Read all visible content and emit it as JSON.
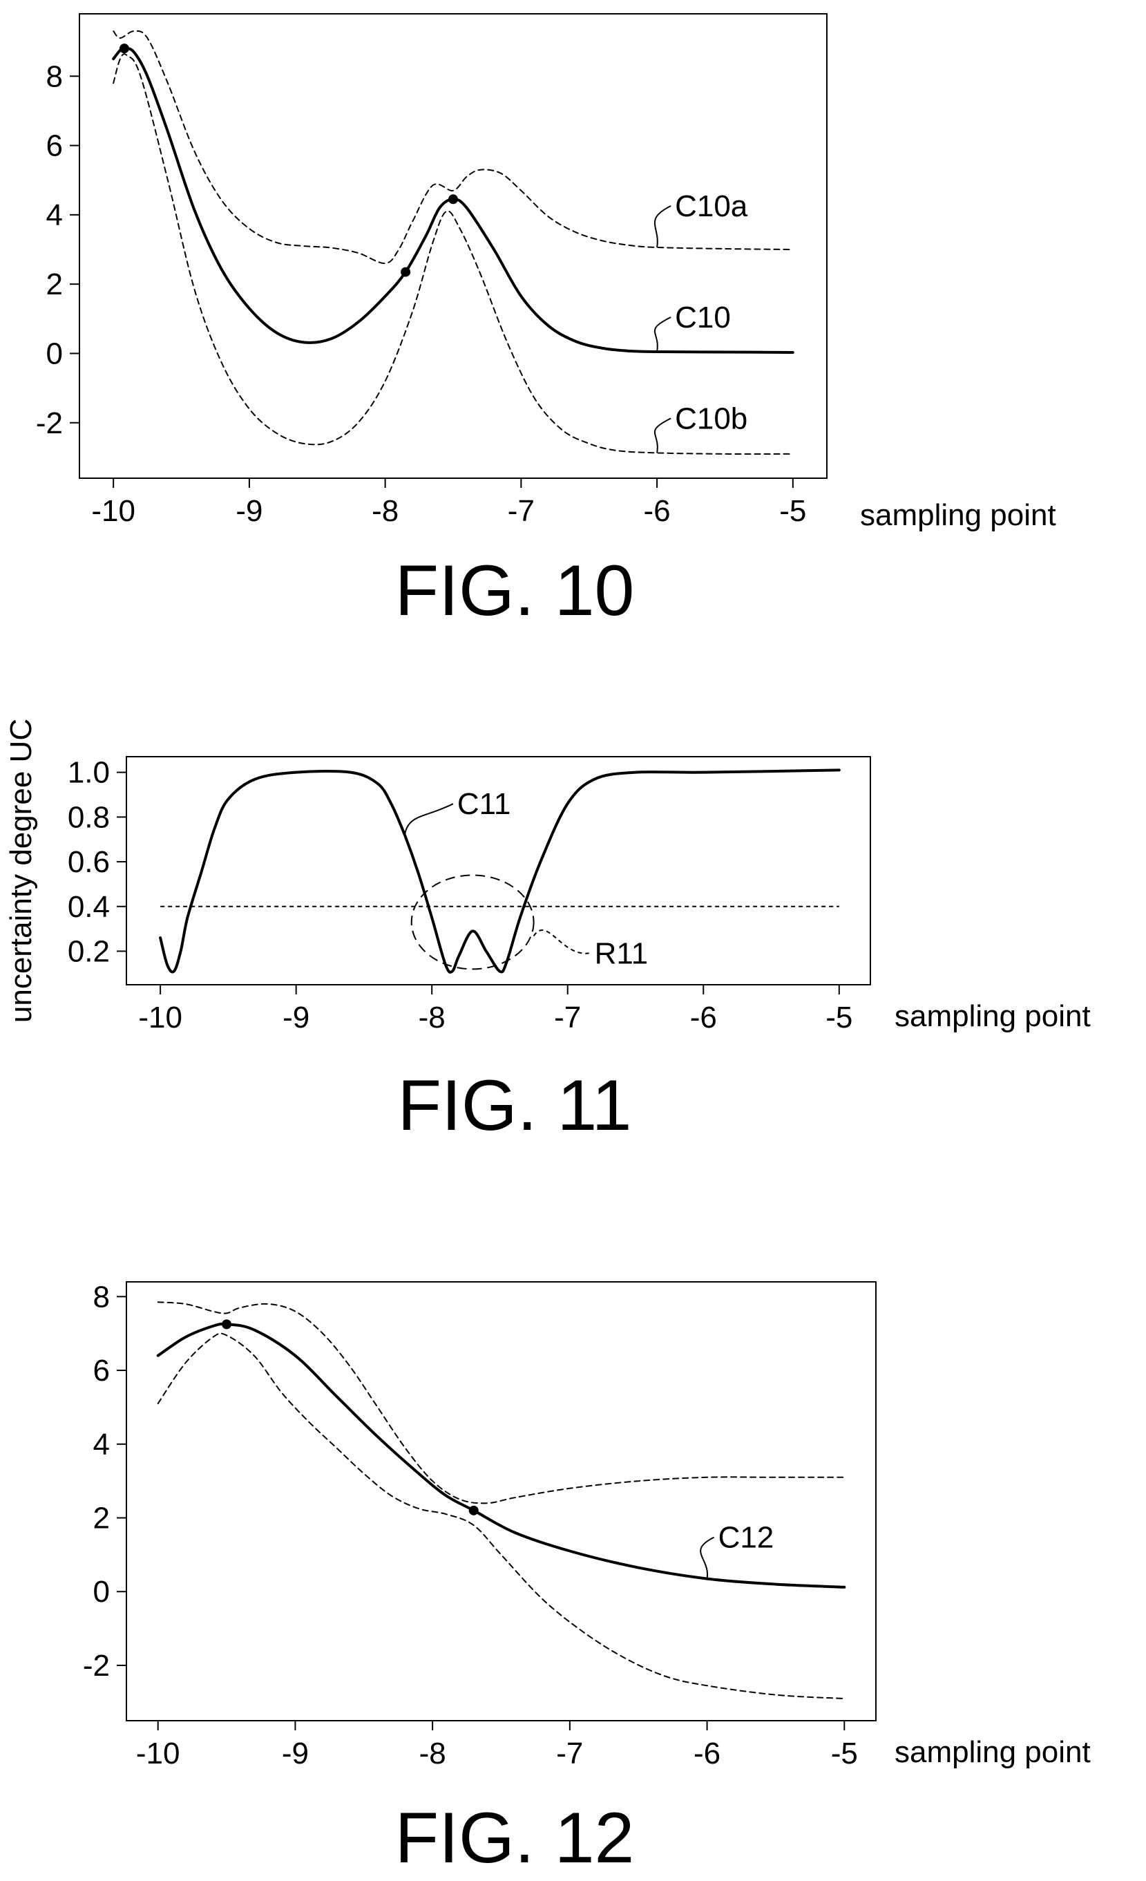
{
  "chart_data": [
    {
      "type": "line",
      "caption": "FIG. 10",
      "xlabel": "sampling point",
      "ylabel": "",
      "xlim": [
        -10.25,
        -4.75
      ],
      "ylim": [
        -3.6,
        9.8
      ],
      "grid": false,
      "legend": "none",
      "x_ticks": [
        -10,
        -9,
        -8,
        -7,
        -6,
        -5
      ],
      "y_ticks": [
        -2,
        0,
        2,
        4,
        6,
        8
      ],
      "series": [
        {
          "name": "C10a",
          "style": "dashed",
          "points": [
            [
              -10,
              9.3
            ],
            [
              -9.95,
              9.1
            ],
            [
              -9.85,
              9.3
            ],
            [
              -9.75,
              9.1
            ],
            [
              -9.6,
              7.8
            ],
            [
              -9.4,
              5.8
            ],
            [
              -9.2,
              4.4
            ],
            [
              -9.0,
              3.6
            ],
            [
              -8.8,
              3.2
            ],
            [
              -8.6,
              3.1
            ],
            [
              -8.4,
              3.05
            ],
            [
              -8.2,
              2.9
            ],
            [
              -8.0,
              2.6
            ],
            [
              -7.9,
              3.0
            ],
            [
              -7.8,
              3.8
            ],
            [
              -7.65,
              4.85
            ],
            [
              -7.5,
              4.7
            ],
            [
              -7.4,
              5.1
            ],
            [
              -7.3,
              5.3
            ],
            [
              -7.15,
              5.2
            ],
            [
              -7.0,
              4.7
            ],
            [
              -6.8,
              3.95
            ],
            [
              -6.6,
              3.5
            ],
            [
              -6.4,
              3.25
            ],
            [
              -6.2,
              3.12
            ],
            [
              -6.0,
              3.06
            ],
            [
              -5.5,
              3.02
            ],
            [
              -5.0,
              3.0
            ]
          ],
          "label_at": -6.0
        },
        {
          "name": "C10",
          "style": "solid",
          "points": [
            [
              -10,
              8.5
            ],
            [
              -9.95,
              8.75
            ],
            [
              -9.92,
              8.8
            ],
            [
              -9.85,
              8.7
            ],
            [
              -9.75,
              8.0
            ],
            [
              -9.6,
              6.4
            ],
            [
              -9.4,
              4.1
            ],
            [
              -9.2,
              2.4
            ],
            [
              -9.0,
              1.3
            ],
            [
              -8.8,
              0.6
            ],
            [
              -8.6,
              0.32
            ],
            [
              -8.4,
              0.42
            ],
            [
              -8.2,
              0.9
            ],
            [
              -8.0,
              1.65
            ],
            [
              -7.85,
              2.35
            ],
            [
              -7.7,
              3.4
            ],
            [
              -7.6,
              4.2
            ],
            [
              -7.5,
              4.45
            ],
            [
              -7.4,
              4.2
            ],
            [
              -7.2,
              3.0
            ],
            [
              -7.0,
              1.65
            ],
            [
              -6.8,
              0.8
            ],
            [
              -6.6,
              0.35
            ],
            [
              -6.4,
              0.15
            ],
            [
              -6.2,
              0.07
            ],
            [
              -6.0,
              0.05
            ],
            [
              -5.5,
              0.04
            ],
            [
              -5.0,
              0.03
            ]
          ],
          "markers": [
            [
              -9.92,
              8.8
            ],
            [
              -7.85,
              2.35
            ],
            [
              -7.5,
              4.45
            ]
          ],
          "label_at": -6.0
        },
        {
          "name": "C10b",
          "style": "dashed",
          "points": [
            [
              -10,
              7.8
            ],
            [
              -9.95,
              8.5
            ],
            [
              -9.9,
              8.6
            ],
            [
              -9.8,
              8.0
            ],
            [
              -9.6,
              5.0
            ],
            [
              -9.4,
              1.8
            ],
            [
              -9.2,
              -0.3
            ],
            [
              -9.0,
              -1.6
            ],
            [
              -8.8,
              -2.3
            ],
            [
              -8.6,
              -2.6
            ],
            [
              -8.4,
              -2.55
            ],
            [
              -8.2,
              -2.0
            ],
            [
              -8.0,
              -0.8
            ],
            [
              -7.8,
              1.2
            ],
            [
              -7.65,
              3.2
            ],
            [
              -7.55,
              4.1
            ],
            [
              -7.45,
              3.6
            ],
            [
              -7.3,
              2.3
            ],
            [
              -7.1,
              0.3
            ],
            [
              -6.9,
              -1.3
            ],
            [
              -6.7,
              -2.2
            ],
            [
              -6.5,
              -2.6
            ],
            [
              -6.3,
              -2.8
            ],
            [
              -6.0,
              -2.87
            ],
            [
              -5.5,
              -2.9
            ],
            [
              -5.0,
              -2.9
            ]
          ],
          "label_at": -6.0
        }
      ]
    },
    {
      "type": "line",
      "caption": "FIG. 11",
      "xlabel": "sampling point",
      "ylabel": "uncertainty degree UC",
      "xlim": [
        -10.25,
        -4.77
      ],
      "ylim": [
        0.05,
        1.07
      ],
      "grid": false,
      "legend": "none",
      "x_ticks": [
        -10,
        -9,
        -8,
        -7,
        -6,
        -5
      ],
      "y_ticks": [
        0.2,
        0.4,
        0.6,
        0.8,
        1.0
      ],
      "y_tick_labels": [
        "0.2",
        "0.4",
        "0.6",
        "0.8",
        "1.0"
      ],
      "threshold": 0.4,
      "region": {
        "name": "R11",
        "center": [
          -7.7,
          0.33
        ],
        "radius_x": 0.45,
        "radius_y": 0.21
      },
      "series": [
        {
          "name": "C11",
          "style": "solid",
          "points": [
            [
              -10,
              0.26
            ],
            [
              -9.95,
              0.14
            ],
            [
              -9.9,
              0.11
            ],
            [
              -9.85,
              0.2
            ],
            [
              -9.8,
              0.35
            ],
            [
              -9.7,
              0.55
            ],
            [
              -9.6,
              0.75
            ],
            [
              -9.5,
              0.88
            ],
            [
              -9.3,
              0.97
            ],
            [
              -9.0,
              1.0
            ],
            [
              -8.6,
              1.0
            ],
            [
              -8.4,
              0.95
            ],
            [
              -8.3,
              0.86
            ],
            [
              -8.2,
              0.72
            ],
            [
              -8.1,
              0.55
            ],
            [
              -8.0,
              0.35
            ],
            [
              -7.9,
              0.14
            ],
            [
              -7.85,
              0.11
            ],
            [
              -7.8,
              0.18
            ],
            [
              -7.7,
              0.29
            ],
            [
              -7.6,
              0.2
            ],
            [
              -7.5,
              0.11
            ],
            [
              -7.45,
              0.15
            ],
            [
              -7.35,
              0.35
            ],
            [
              -7.2,
              0.6
            ],
            [
              -7.0,
              0.86
            ],
            [
              -6.8,
              0.97
            ],
            [
              -6.5,
              1.0
            ],
            [
              -6.0,
              1.0
            ],
            [
              -5.0,
              1.01
            ]
          ],
          "label_at": -8.2
        }
      ]
    },
    {
      "type": "line",
      "caption": "FIG. 12",
      "xlabel": "sampling point",
      "ylabel": "",
      "xlim": [
        -10.23,
        -4.77
      ],
      "ylim": [
        -3.5,
        8.4
      ],
      "grid": false,
      "legend": "none",
      "x_ticks": [
        -10,
        -9,
        -8,
        -7,
        -6,
        -5
      ],
      "y_ticks": [
        -2,
        0,
        2,
        4,
        6,
        8
      ],
      "series": [
        {
          "name": "",
          "style": "dashed",
          "points": [
            [
              -10,
              7.85
            ],
            [
              -9.8,
              7.8
            ],
            [
              -9.6,
              7.6
            ],
            [
              -9.5,
              7.55
            ],
            [
              -9.4,
              7.7
            ],
            [
              -9.2,
              7.8
            ],
            [
              -9.0,
              7.6
            ],
            [
              -8.8,
              7.0
            ],
            [
              -8.6,
              6.1
            ],
            [
              -8.4,
              5.0
            ],
            [
              -8.2,
              3.9
            ],
            [
              -8.0,
              3.0
            ],
            [
              -7.8,
              2.5
            ],
            [
              -7.6,
              2.4
            ],
            [
              -7.4,
              2.55
            ],
            [
              -7.0,
              2.8
            ],
            [
              -6.5,
              3.0
            ],
            [
              -6.0,
              3.1
            ],
            [
              -5.5,
              3.1
            ],
            [
              -5.0,
              3.1
            ]
          ]
        },
        {
          "name": "C12",
          "style": "solid",
          "points": [
            [
              -10,
              6.4
            ],
            [
              -9.8,
              6.9
            ],
            [
              -9.6,
              7.2
            ],
            [
              -9.5,
              7.25
            ],
            [
              -9.3,
              7.1
            ],
            [
              -9.0,
              6.4
            ],
            [
              -8.7,
              5.3
            ],
            [
              -8.4,
              4.2
            ],
            [
              -8.1,
              3.2
            ],
            [
              -7.9,
              2.6
            ],
            [
              -7.7,
              2.2
            ],
            [
              -7.4,
              1.6
            ],
            [
              -7.0,
              1.1
            ],
            [
              -6.5,
              0.65
            ],
            [
              -6.0,
              0.35
            ],
            [
              -5.5,
              0.2
            ],
            [
              -5.0,
              0.12
            ]
          ],
          "markers": [
            [
              -9.5,
              7.25
            ],
            [
              -7.7,
              2.2
            ]
          ],
          "label_at": -6.0
        },
        {
          "name": "",
          "style": "dashed",
          "points": [
            [
              -10,
              5.1
            ],
            [
              -9.8,
              6.2
            ],
            [
              -9.6,
              6.9
            ],
            [
              -9.5,
              6.95
            ],
            [
              -9.3,
              6.4
            ],
            [
              -9.1,
              5.4
            ],
            [
              -8.9,
              4.6
            ],
            [
              -8.7,
              3.9
            ],
            [
              -8.5,
              3.2
            ],
            [
              -8.3,
              2.6
            ],
            [
              -8.1,
              2.25
            ],
            [
              -7.9,
              2.1
            ],
            [
              -7.7,
              1.8
            ],
            [
              -7.5,
              1.0
            ],
            [
              -7.2,
              -0.2
            ],
            [
              -6.9,
              -1.1
            ],
            [
              -6.6,
              -1.8
            ],
            [
              -6.3,
              -2.3
            ],
            [
              -6.0,
              -2.55
            ],
            [
              -5.5,
              -2.8
            ],
            [
              -5.0,
              -2.9
            ]
          ]
        }
      ]
    }
  ]
}
